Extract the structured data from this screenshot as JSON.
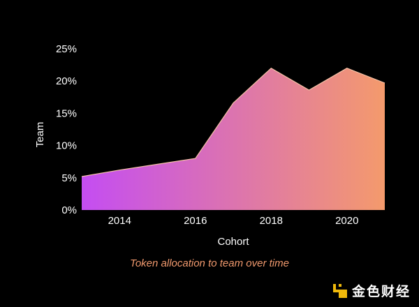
{
  "chart_data": {
    "type": "area",
    "x": [
      2013,
      2014,
      2015,
      2016,
      2017,
      2018,
      2019,
      2020,
      2021
    ],
    "x_ticks": [
      "2014",
      "2016",
      "2018",
      "2020"
    ],
    "series": [
      {
        "values": [
          5.2,
          6.2,
          7.1,
          8.0,
          16.6,
          22.0,
          18.6,
          22.0,
          19.7
        ]
      }
    ],
    "y_ticks": [
      "0%",
      "5%",
      "10%",
      "15%",
      "20%",
      "25%"
    ],
    "ylim": [
      0,
      25
    ],
    "xlim": [
      2013,
      2021
    ],
    "xlabel": "Cohort",
    "ylabel": "Team",
    "caption": "Token allocation to team over time",
    "grid": false,
    "colors": {
      "gradient_start": "#c44df2",
      "gradient_end": "#f49a6c",
      "edge": "#f6c3a7"
    }
  },
  "watermark": {
    "text": "金色财经",
    "icon": "binance-diamond-logo-icon"
  }
}
